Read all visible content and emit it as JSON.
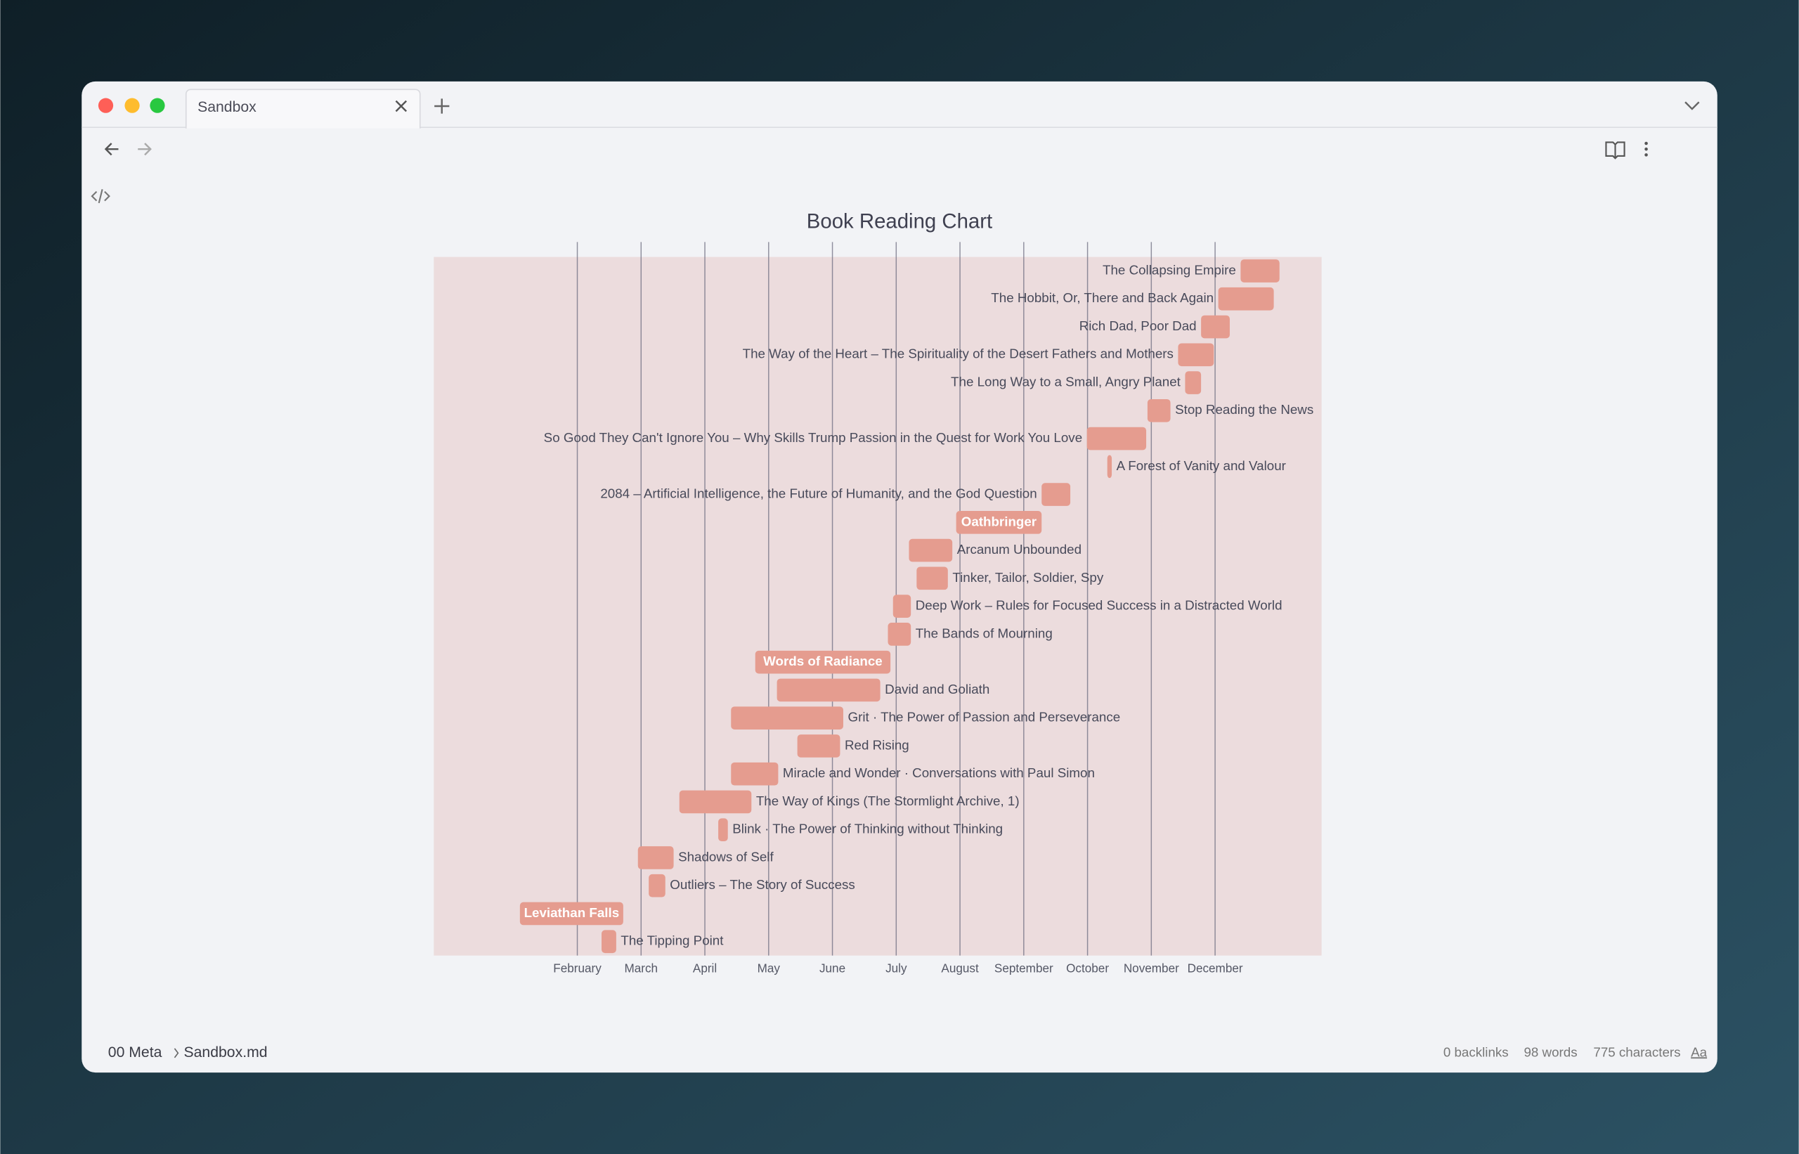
{
  "window": {
    "tab": "Sandbox",
    "breadcrumb": [
      "00 Meta",
      "Sandbox.md"
    ],
    "status": [
      "0 backlinks",
      "98 words",
      "775 characters",
      "Aa"
    ]
  },
  "chart_data": {
    "type": "gantt",
    "title": "Book Reading Chart",
    "color": "#e59c8f",
    "grid": true,
    "xlim": [
      -0.25,
      13.67
    ],
    "xticks": [
      {
        "value": 2,
        "label": "February"
      },
      {
        "value": 3,
        "label": "March"
      },
      {
        "value": 4,
        "label": "April"
      },
      {
        "value": 5,
        "label": "May"
      },
      {
        "value": 6,
        "label": "June"
      },
      {
        "value": 7,
        "label": "July"
      },
      {
        "value": 8,
        "label": "August"
      },
      {
        "value": 9,
        "label": "September"
      },
      {
        "value": 10,
        "label": "October"
      },
      {
        "value": 11,
        "label": "November"
      },
      {
        "value": 12,
        "label": "December"
      }
    ],
    "tasks": [
      {
        "name": "The Collapsing Empire",
        "start": 12.4,
        "end": 13.01
      },
      {
        "name": "The Hobbit, Or, There and Back Again",
        "start": 12.05,
        "end": 12.92
      },
      {
        "name": "Rich Dad, Poor Dad",
        "start": 11.78,
        "end": 12.23
      },
      {
        "name": "The Way of the Heart – The Spirituality of the Desert Fathers and Mothers",
        "start": 11.42,
        "end": 11.98
      },
      {
        "name": "The Long Way to a Small, Angry Planet",
        "start": 11.53,
        "end": 11.78
      },
      {
        "name": "Stop Reading the News",
        "start": 10.94,
        "end": 11.3
      },
      {
        "name": "So Good They Can't Ignore You – Why Skills Trump Passion in the Quest for Work You Love",
        "start": 9.99,
        "end": 10.92
      },
      {
        "name": "A Forest of Vanity and Valour",
        "start": 10.31,
        "end": 10.38
      },
      {
        "name": "2084 – Artificial Intelligence, the Future of Humanity, and the God Question",
        "start": 9.28,
        "end": 9.73
      },
      {
        "name": "Oathbringer",
        "start": 7.94,
        "end": 9.28
      },
      {
        "name": "Arcanum Unbounded",
        "start": 7.2,
        "end": 7.88
      },
      {
        "name": "Tinker, Tailor, Soldier, Spy",
        "start": 7.32,
        "end": 7.81
      },
      {
        "name": "Deep Work – Rules for Focused Success in a Distracted World",
        "start": 6.95,
        "end": 7.23
      },
      {
        "name": "The Bands of Mourning",
        "start": 6.87,
        "end": 7.23
      },
      {
        "name": "Words of Radiance",
        "start": 4.79,
        "end": 6.91
      },
      {
        "name": "David and Goliath",
        "start": 5.13,
        "end": 6.75
      },
      {
        "name": "Grit · The Power of Passion and Perseverance",
        "start": 4.41,
        "end": 6.17
      },
      {
        "name": "Red Rising",
        "start": 5.45,
        "end": 6.12
      },
      {
        "name": "Miracle and Wonder · Conversations with Paul Simon",
        "start": 4.41,
        "end": 5.15
      },
      {
        "name": "The Way of Kings (The Stormlight Archive, 1)",
        "start": 3.6,
        "end": 4.73
      },
      {
        "name": "Blink · The Power of Thinking without Thinking",
        "start": 4.21,
        "end": 4.36
      },
      {
        "name": "Shadows of Self",
        "start": 2.95,
        "end": 3.51
      },
      {
        "name": "Outliers – The Story of Success",
        "start": 3.12,
        "end": 3.38
      },
      {
        "name": "Leviathan Falls",
        "start": 1.1,
        "end": 2.72
      },
      {
        "name": "The Tipping Point",
        "start": 2.38,
        "end": 2.61
      }
    ]
  }
}
